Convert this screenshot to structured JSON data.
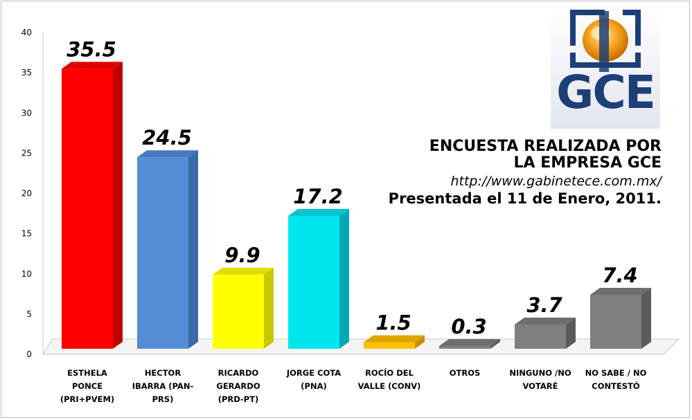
{
  "logo": {
    "text": "GCE"
  },
  "info": {
    "line1": "ENCUESTA REALIZADA POR",
    "line2": "LA EMPRESA GCE",
    "url": "http://www.gabinetece.com.mx/",
    "date": "Presentada el 11 de Enero, 2011."
  },
  "chart_data": {
    "type": "bar",
    "title": "",
    "xlabel": "",
    "ylabel": "",
    "ylim": [
      0,
      40
    ],
    "yticks": [
      0,
      5,
      10,
      15,
      20,
      25,
      30,
      35,
      40
    ],
    "grid": false,
    "categories": [
      [
        "ESTHELA",
        "PONCE",
        "(PRI+PVEM)"
      ],
      [
        "HECTOR",
        "IBARRA (PAN-",
        "PRS)"
      ],
      [
        "RICARDO",
        "GERARDO",
        "(PRD-PT)"
      ],
      [
        "JORGE COTA",
        "(PNA)"
      ],
      [
        "ROCÍO DEL",
        "VALLE (CONV)"
      ],
      [
        "OTROS"
      ],
      [
        "NINGUNO /NO",
        "VOTARÉ"
      ],
      [
        "NO SABE / NO",
        "CONTESTÓ"
      ]
    ],
    "values": [
      35.5,
      24.5,
      9.9,
      17.2,
      1.5,
      0.3,
      3.7,
      7.4
    ],
    "data_labels": [
      "35.5",
      "24.5",
      "9.9",
      "17.2",
      "1.5",
      "0.3",
      "3.7",
      "7.4"
    ],
    "colors": [
      "#ff0000",
      "#538dd5",
      "#ffff00",
      "#00e5ee",
      "#ffc000",
      "#7f7f7f",
      "#7f7f7f",
      "#7f7f7f"
    ],
    "side_colors": [
      "#c00000",
      "#3a6aa8",
      "#c8c800",
      "#00a9b5",
      "#cc8a00",
      "#5a5a5a",
      "#5a5a5a",
      "#5a5a5a"
    ],
    "top_colors": [
      "#e00000",
      "#4679bf",
      "#e0e000",
      "#00c4d0",
      "#e0a400",
      "#6e6e6e",
      "#6e6e6e",
      "#6e6e6e"
    ]
  }
}
